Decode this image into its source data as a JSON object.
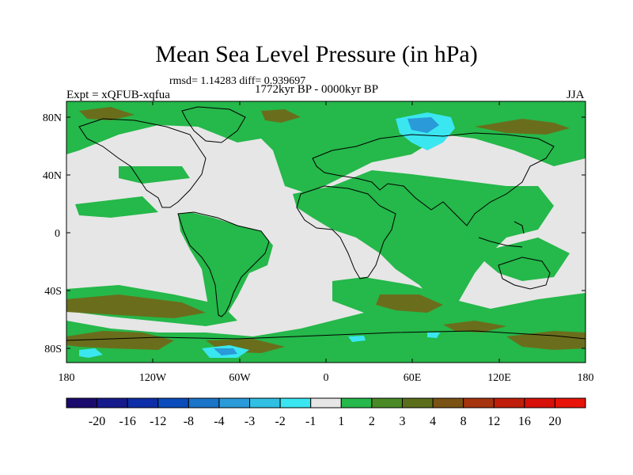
{
  "title": "Mean Sea Level Pressure (in hPa)",
  "stats": "rmsd= 1.14283 diff= 0.939697",
  "period": "1772kyr BP - 0000kyr BP",
  "experiment": "Expt = xQFUB-xqfua",
  "season": "JJA",
  "map": {
    "lat_labels": [
      "80N",
      "40N",
      "0",
      "40S",
      "80S"
    ],
    "lon_labels": [
      "180",
      "120W",
      "60W",
      "0",
      "60E",
      "120E",
      "180"
    ]
  },
  "colorbar": {
    "labels": [
      "-20",
      "-16",
      "-12",
      "-8",
      "-4",
      "-3",
      "-2",
      "-1",
      "1",
      "2",
      "3",
      "4",
      "8",
      "12",
      "16",
      "20"
    ],
    "colors": [
      "#1a0a6e",
      "#151a8c",
      "#0d2ea8",
      "#0a4cbc",
      "#1a74c8",
      "#2a9ad8",
      "#2fc0e4",
      "#3ae6f0",
      "#e6e6e6",
      "#25b84a",
      "#4a8a26",
      "#5a6e1c",
      "#7a5214",
      "#a6340e",
      "#c01e0a",
      "#d8100a",
      "#e8140a"
    ]
  }
}
